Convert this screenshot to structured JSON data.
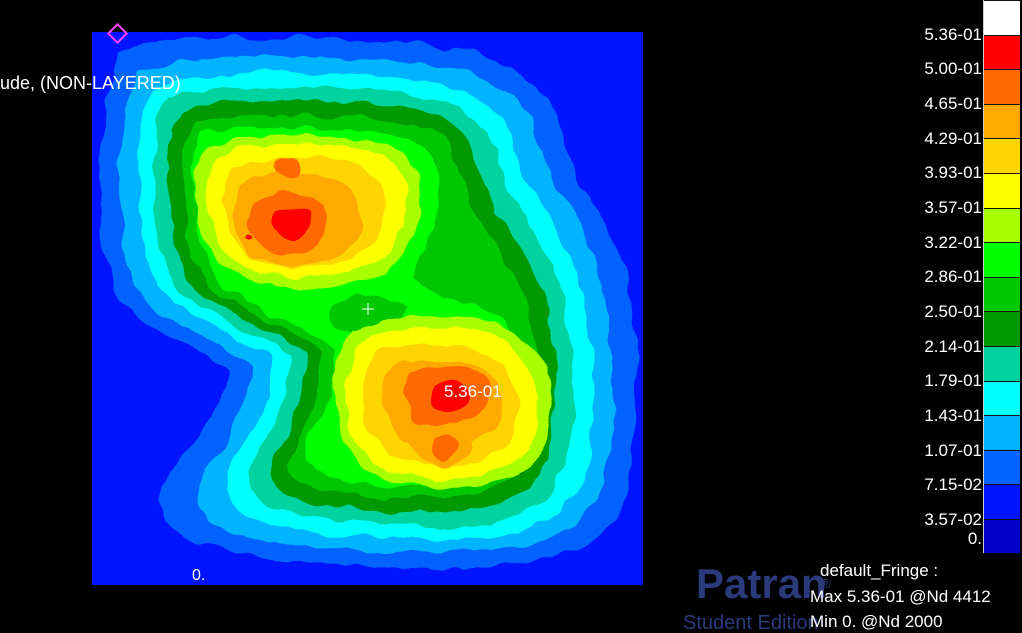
{
  "view": {
    "title_fragment": "ude, (NON-LAYERED)",
    "peak_label": "5.36-01",
    "corner_min_label": "0.",
    "origin_marker": "diamond-marker"
  },
  "legend": {
    "values": [
      "5.36-01",
      "5.00-01",
      "4.65-01",
      "4.29-01",
      "3.93-01",
      "3.57-01",
      "3.22-01",
      "2.86-01",
      "2.50-01",
      "2.14-01",
      "1.79-01",
      "1.43-01",
      "1.07-01",
      "7.15-02",
      "3.57-02",
      "0."
    ],
    "colors": [
      "#ffffff",
      "#ff0000",
      "#ff6a00",
      "#ffaa00",
      "#ffd500",
      "#ffff00",
      "#a8ff00",
      "#00ff00",
      "#00c800",
      "#009a00",
      "#00d2a0",
      "#00ffff",
      "#00b4ff",
      "#0064ff",
      "#0014ff",
      "#0000c8"
    ]
  },
  "info": {
    "fringe_name": "default_Fringe :",
    "max_line": "Max 5.36-01 @Nd 4412",
    "min_line": "Min  0. @Nd 2000"
  },
  "watermark": {
    "product": "Patran",
    "reg": "®",
    "edition": "Student Edition"
  }
}
